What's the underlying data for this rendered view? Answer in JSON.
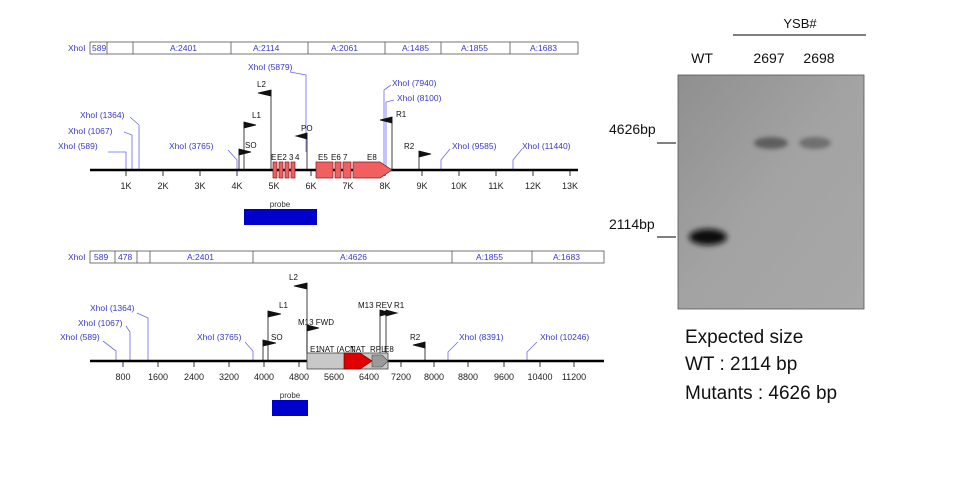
{
  "map1": {
    "segments": [
      "XhoI",
      "589",
      "A:2401",
      "A:2114",
      "A:2061",
      "A:1485",
      "A:1855",
      "A:1683"
    ],
    "sites": [
      "XhoI (589)",
      "XhoI (1067)",
      "XhoI (1364)",
      "XhoI (3765)",
      "XhoI (5879)",
      "XhoI (7940)",
      "XhoI (8100)",
      "XhoI (9585)",
      "XhoI (11440)"
    ],
    "primers": [
      "L2",
      "L1",
      "SO",
      "PO",
      "R1",
      "R2"
    ],
    "exons": [
      "E",
      "E2",
      "3",
      "4",
      "E5",
      "E6",
      "7",
      "E8"
    ],
    "ticks": [
      "1K",
      "2K",
      "3K",
      "4K",
      "5K",
      "6K",
      "7K",
      "8K",
      "9K",
      "10K",
      "11K",
      "12K",
      "13K"
    ],
    "probe": "probe"
  },
  "map2": {
    "segments": [
      "XhoI",
      "589",
      "478",
      "A:2401",
      "A:4626",
      "A:1855",
      "A:1683"
    ],
    "sites": [
      "XhoI (589)",
      "XhoI (1067)",
      "XhoI (1364)",
      "XhoI (3765)",
      "XhoI (8391)",
      "XhoI (10246)"
    ],
    "primers": [
      "L2",
      "L1",
      "SO",
      "M13 FWD",
      "M13 REV",
      "R1",
      "R2"
    ],
    "inserts": [
      "E1",
      "NAT (ACT",
      "NAT",
      "RPL",
      "E8"
    ],
    "ticks": [
      "800",
      "1600",
      "2400",
      "3200",
      "4000",
      "4800",
      "5600",
      "6400",
      "7200",
      "8000",
      "8800",
      "9600",
      "10400",
      "11200"
    ],
    "probe": "probe"
  },
  "blot": {
    "group_label": "YSB#",
    "lanes": [
      "WT",
      "2697",
      "2698"
    ],
    "markers": [
      "4626bp",
      "2114bp"
    ],
    "expected": [
      "Expected size",
      "WT : 2114 bp",
      "Mutants : 4626 bp"
    ]
  },
  "colors": {
    "site": "#3838c8",
    "exon": "#f06060",
    "nat": "#e00000",
    "probe": "#0000cc",
    "gel": "#9c9c9c"
  }
}
